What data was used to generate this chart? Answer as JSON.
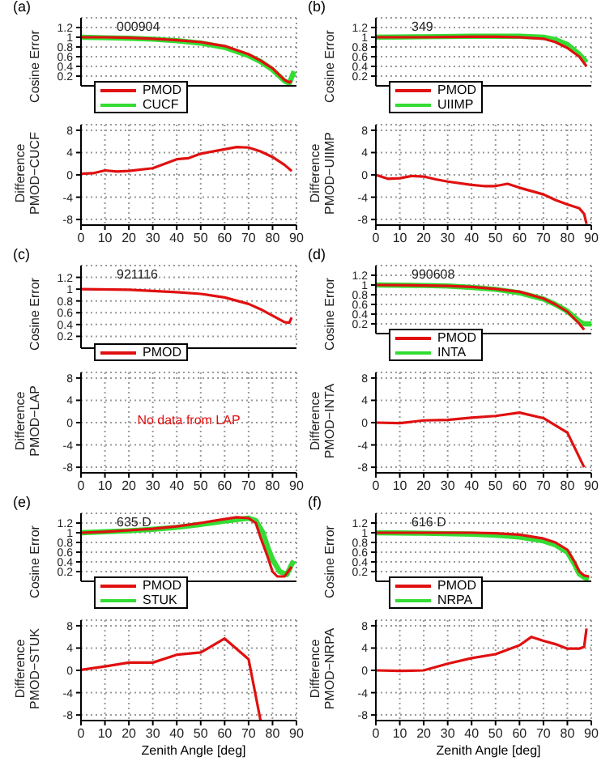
{
  "chart_data": [
    {
      "type": "line",
      "title": "(a)",
      "annotations": [
        "000904"
      ],
      "ylabel": "Cosine Error",
      "xlim": [
        0,
        90
      ],
      "xticks": [
        0,
        10,
        20,
        30,
        40,
        50,
        60,
        70,
        80,
        90
      ],
      "ylim": [
        0,
        1.4
      ],
      "yticks": [
        0.2,
        0.4,
        0.6,
        0.8,
        1,
        1.2
      ],
      "tick_labels": "y",
      "grid": true,
      "legend": "bottom left",
      "series": [
        {
          "name": "PMOD",
          "color": "#e01010",
          "x": [
            0,
            10,
            20,
            30,
            40,
            50,
            60,
            70,
            75,
            80,
            85,
            87,
            88
          ],
          "values": [
            1,
            1,
            0.99,
            0.97,
            0.94,
            0.9,
            0.82,
            0.65,
            0.52,
            0.36,
            0.12,
            0.07,
            0.1
          ]
        },
        {
          "name": "CUCF",
          "color": "#33dd33",
          "x": [
            0,
            10,
            20,
            30,
            40,
            50,
            60,
            70,
            75,
            80,
            85,
            87,
            89
          ],
          "values": [
            1,
            0.99,
            0.98,
            0.96,
            0.93,
            0.88,
            0.79,
            0.62,
            0.5,
            0.33,
            0.1,
            0.05,
            0.3
          ]
        }
      ]
    },
    {
      "type": "line",
      "ylabel": "Difference PMOD−CUCF",
      "xlim": [
        0,
        90
      ],
      "xticks": [
        0,
        10,
        20,
        30,
        40,
        50,
        60,
        70,
        80,
        90
      ],
      "ylim": [
        -9,
        9
      ],
      "yticks": [
        -8,
        -4,
        0,
        4,
        8
      ],
      "grid": true,
      "series": [
        {
          "color": "#e01010",
          "x": [
            0,
            5,
            10,
            15,
            20,
            30,
            40,
            45,
            50,
            60,
            65,
            70,
            75,
            80,
            85,
            88
          ],
          "values": [
            0.2,
            0.3,
            0.8,
            0.6,
            0.7,
            1.2,
            2.8,
            3,
            3.8,
            4.6,
            5,
            4.9,
            4.2,
            3.2,
            1.8,
            0.7
          ]
        }
      ]
    },
    {
      "type": "line",
      "title": "(b)",
      "annotations": [
        "349"
      ],
      "ylabel": "Cosine Error",
      "xlim": [
        0,
        90
      ],
      "xticks": [
        0,
        10,
        20,
        30,
        40,
        50,
        60,
        70,
        80,
        90
      ],
      "ylim": [
        0,
        1.4
      ],
      "yticks": [
        0.2,
        0.4,
        0.6,
        0.8,
        1,
        1.2
      ],
      "tick_labels": "y",
      "grid": true,
      "legend": "bottom left",
      "series": [
        {
          "name": "PMOD",
          "color": "#e01010",
          "x": [
            0,
            20,
            40,
            50,
            60,
            70,
            75,
            80,
            85,
            88
          ],
          "values": [
            1,
            1,
            1.01,
            1.01,
            1,
            0.97,
            0.9,
            0.78,
            0.6,
            0.4
          ]
        },
        {
          "name": "UIIMP",
          "color": "#33dd33",
          "x": [
            0,
            20,
            40,
            60,
            70,
            75,
            80,
            85,
            88
          ],
          "values": [
            1,
            1.01,
            1.02,
            1.02,
            1,
            0.95,
            0.85,
            0.65,
            0.48
          ]
        }
      ]
    },
    {
      "type": "line",
      "ylabel": "Difference PMOD−UIIMP",
      "xlim": [
        0,
        90
      ],
      "xticks": [
        0,
        10,
        20,
        30,
        40,
        50,
        60,
        70,
        80,
        90
      ],
      "ylim": [
        -9,
        9
      ],
      "yticks": [
        -8,
        -4,
        0,
        4,
        8
      ],
      "grid": true,
      "series": [
        {
          "color": "#e01010",
          "x": [
            0,
            5,
            10,
            15,
            20,
            25,
            30,
            40,
            45,
            50,
            55,
            60,
            70,
            75,
            80,
            85,
            87,
            88
          ],
          "values": [
            0,
            -0.7,
            -0.6,
            -0.2,
            -0.3,
            -0.8,
            -1.2,
            -1.8,
            -2,
            -2,
            -1.6,
            -2.3,
            -3.5,
            -4.5,
            -5.3,
            -6,
            -7,
            -8.8
          ]
        }
      ]
    },
    {
      "type": "line",
      "title": "(c)",
      "annotations": [
        "921116"
      ],
      "ylabel": "Cosine Error",
      "xlim": [
        0,
        90
      ],
      "xticks": [
        0,
        10,
        20,
        30,
        40,
        50,
        60,
        70,
        80,
        90
      ],
      "ylim": [
        0,
        1.4
      ],
      "yticks": [
        0.2,
        0.4,
        0.6,
        0.8,
        1,
        1.2
      ],
      "tick_labels": "y",
      "grid": true,
      "legend": "bottom left",
      "series": [
        {
          "name": "PMOD",
          "color": "#e01010",
          "x": [
            0,
            20,
            30,
            40,
            50,
            60,
            70,
            75,
            80,
            85,
            87,
            88
          ],
          "values": [
            1,
            0.99,
            0.97,
            0.95,
            0.92,
            0.86,
            0.75,
            0.66,
            0.55,
            0.44,
            0.43,
            0.52
          ]
        }
      ]
    },
    {
      "type": "line",
      "ylabel": "Difference PMOD−LAP",
      "annotations": [
        "No data from LAP"
      ],
      "xlim": [
        0,
        90
      ],
      "xticks": [
        0,
        10,
        20,
        30,
        40,
        50,
        60,
        70,
        80,
        90
      ],
      "ylim": [
        -9,
        9
      ],
      "yticks": [
        -8,
        -4,
        0,
        4,
        8
      ],
      "grid": true
    },
    {
      "type": "line",
      "title": "(d)",
      "annotations": [
        "990608"
      ],
      "ylabel": "Cosine Error",
      "xlim": [
        0,
        90
      ],
      "xticks": [
        0,
        10,
        20,
        30,
        40,
        50,
        60,
        70,
        80,
        90
      ],
      "ylim": [
        0,
        1.4
      ],
      "yticks": [
        0.2,
        0.4,
        0.6,
        0.8,
        1,
        1.2
      ],
      "tick_labels": "y",
      "grid": true,
      "legend": "bottom left",
      "series": [
        {
          "name": "PMOD",
          "color": "#e01010",
          "x": [
            0,
            20,
            30,
            40,
            50,
            60,
            70,
            75,
            80,
            85,
            87
          ],
          "values": [
            1,
            0.99,
            0.98,
            0.96,
            0.92,
            0.86,
            0.72,
            0.6,
            0.45,
            0.2,
            0.08
          ]
        },
        {
          "name": "INTA",
          "color": "#33dd33",
          "x": [
            0,
            20,
            30,
            40,
            50,
            60,
            70,
            75,
            80,
            85,
            87,
            90
          ],
          "values": [
            1,
            0.99,
            0.98,
            0.95,
            0.91,
            0.84,
            0.71,
            0.6,
            0.46,
            0.25,
            0.2,
            0.2
          ]
        }
      ]
    },
    {
      "type": "line",
      "ylabel": "Difference PMOD−INTA",
      "xlim": [
        0,
        90
      ],
      "xticks": [
        0,
        10,
        20,
        30,
        40,
        50,
        60,
        70,
        80,
        90
      ],
      "ylim": [
        -9,
        9
      ],
      "yticks": [
        -8,
        -4,
        0,
        4,
        8
      ],
      "grid": true,
      "series": [
        {
          "color": "#e01010",
          "x": [
            0,
            10,
            20,
            30,
            40,
            50,
            60,
            70,
            80,
            87
          ],
          "values": [
            0,
            -0.1,
            0.4,
            0.5,
            0.9,
            1.2,
            1.8,
            0.8,
            -1.8,
            -8
          ]
        }
      ]
    },
    {
      "type": "line",
      "title": "(e)",
      "annotations": [
        "635 D"
      ],
      "ylabel": "Cosine Error",
      "xlim": [
        0,
        90
      ],
      "xticks": [
        0,
        10,
        20,
        30,
        40,
        50,
        60,
        70,
        80,
        90
      ],
      "ylim": [
        0,
        1.4
      ],
      "yticks": [
        0.2,
        0.4,
        0.6,
        0.8,
        1,
        1.2
      ],
      "tick_labels": "y",
      "grid": true,
      "legend": "bottom left",
      "series": [
        {
          "name": "PMOD",
          "color": "#e01010",
          "x": [
            0,
            10,
            20,
            30,
            40,
            50,
            60,
            65,
            70,
            73,
            75,
            78,
            80,
            82,
            85,
            88
          ],
          "values": [
            1,
            1.02,
            1.05,
            1.08,
            1.13,
            1.2,
            1.28,
            1.32,
            1.3,
            1.2,
            0.9,
            0.5,
            0.2,
            0.1,
            0.1,
            0.3
          ]
        },
        {
          "name": "STUK",
          "color": "#33dd33",
          "x": [
            0,
            10,
            20,
            30,
            40,
            50,
            60,
            70,
            73,
            76,
            78,
            80,
            83,
            86,
            88,
            89
          ],
          "values": [
            1,
            1.02,
            1.04,
            1.07,
            1.11,
            1.17,
            1.24,
            1.3,
            1.25,
            1,
            0.7,
            0.45,
            0.2,
            0.14,
            0.35,
            0.42
          ]
        }
      ]
    },
    {
      "type": "line",
      "ylabel": "Difference PMOD−STUK",
      "xlabel": "Zenith Angle [deg]",
      "xlim": [
        0,
        90
      ],
      "xticks": [
        0,
        10,
        20,
        30,
        40,
        50,
        60,
        70,
        80,
        90
      ],
      "ylim": [
        -9,
        9
      ],
      "yticks": [
        -8,
        -4,
        0,
        4,
        8
      ],
      "grid": true,
      "series": [
        {
          "color": "#e01010",
          "x": [
            0,
            10,
            20,
            30,
            40,
            50,
            60,
            70,
            75
          ],
          "values": [
            0.1,
            0.7,
            1.4,
            1.4,
            2.8,
            3.2,
            5.7,
            2,
            -9
          ]
        }
      ]
    },
    {
      "type": "line",
      "title": "(f)",
      "annotations": [
        "616 D"
      ],
      "ylabel": "Cosine Error",
      "xlim": [
        0,
        90
      ],
      "xticks": [
        0,
        10,
        20,
        30,
        40,
        50,
        60,
        70,
        80,
        90
      ],
      "ylim": [
        0,
        1.4
      ],
      "yticks": [
        0.2,
        0.4,
        0.6,
        0.8,
        1,
        1.2
      ],
      "tick_labels": "y",
      "grid": true,
      "legend": "bottom left",
      "series": [
        {
          "name": "PMOD",
          "color": "#e01010",
          "x": [
            0,
            20,
            40,
            50,
            60,
            70,
            75,
            80,
            83,
            85,
            87,
            89
          ],
          "values": [
            1,
            1,
            1,
            0.99,
            0.96,
            0.88,
            0.8,
            0.65,
            0.4,
            0.2,
            0.12,
            0.1
          ]
        },
        {
          "name": "NRPA",
          "color": "#33dd33",
          "x": [
            0,
            20,
            40,
            50,
            60,
            70,
            75,
            80,
            83,
            85,
            87,
            89
          ],
          "values": [
            1,
            0.99,
            0.97,
            0.95,
            0.91,
            0.83,
            0.75,
            0.6,
            0.35,
            0.15,
            0.08,
            0.05
          ]
        }
      ]
    },
    {
      "type": "line",
      "ylabel": "Difference PMOD−NRPA",
      "xlabel": "Zenith Angle [deg]",
      "xlim": [
        0,
        90
      ],
      "xticks": [
        0,
        10,
        20,
        30,
        40,
        50,
        60,
        70,
        80,
        90
      ],
      "ylim": [
        -9,
        9
      ],
      "yticks": [
        -8,
        -4,
        0,
        4,
        8
      ],
      "grid": true,
      "series": [
        {
          "color": "#e01010",
          "x": [
            0,
            10,
            20,
            30,
            40,
            50,
            60,
            65,
            70,
            75,
            80,
            85,
            87,
            88
          ],
          "values": [
            0,
            -0.1,
            0,
            1.2,
            2.2,
            2.9,
            4.5,
            6,
            5.3,
            4.7,
            3.9,
            3.9,
            4.2,
            7.5
          ]
        }
      ]
    }
  ]
}
